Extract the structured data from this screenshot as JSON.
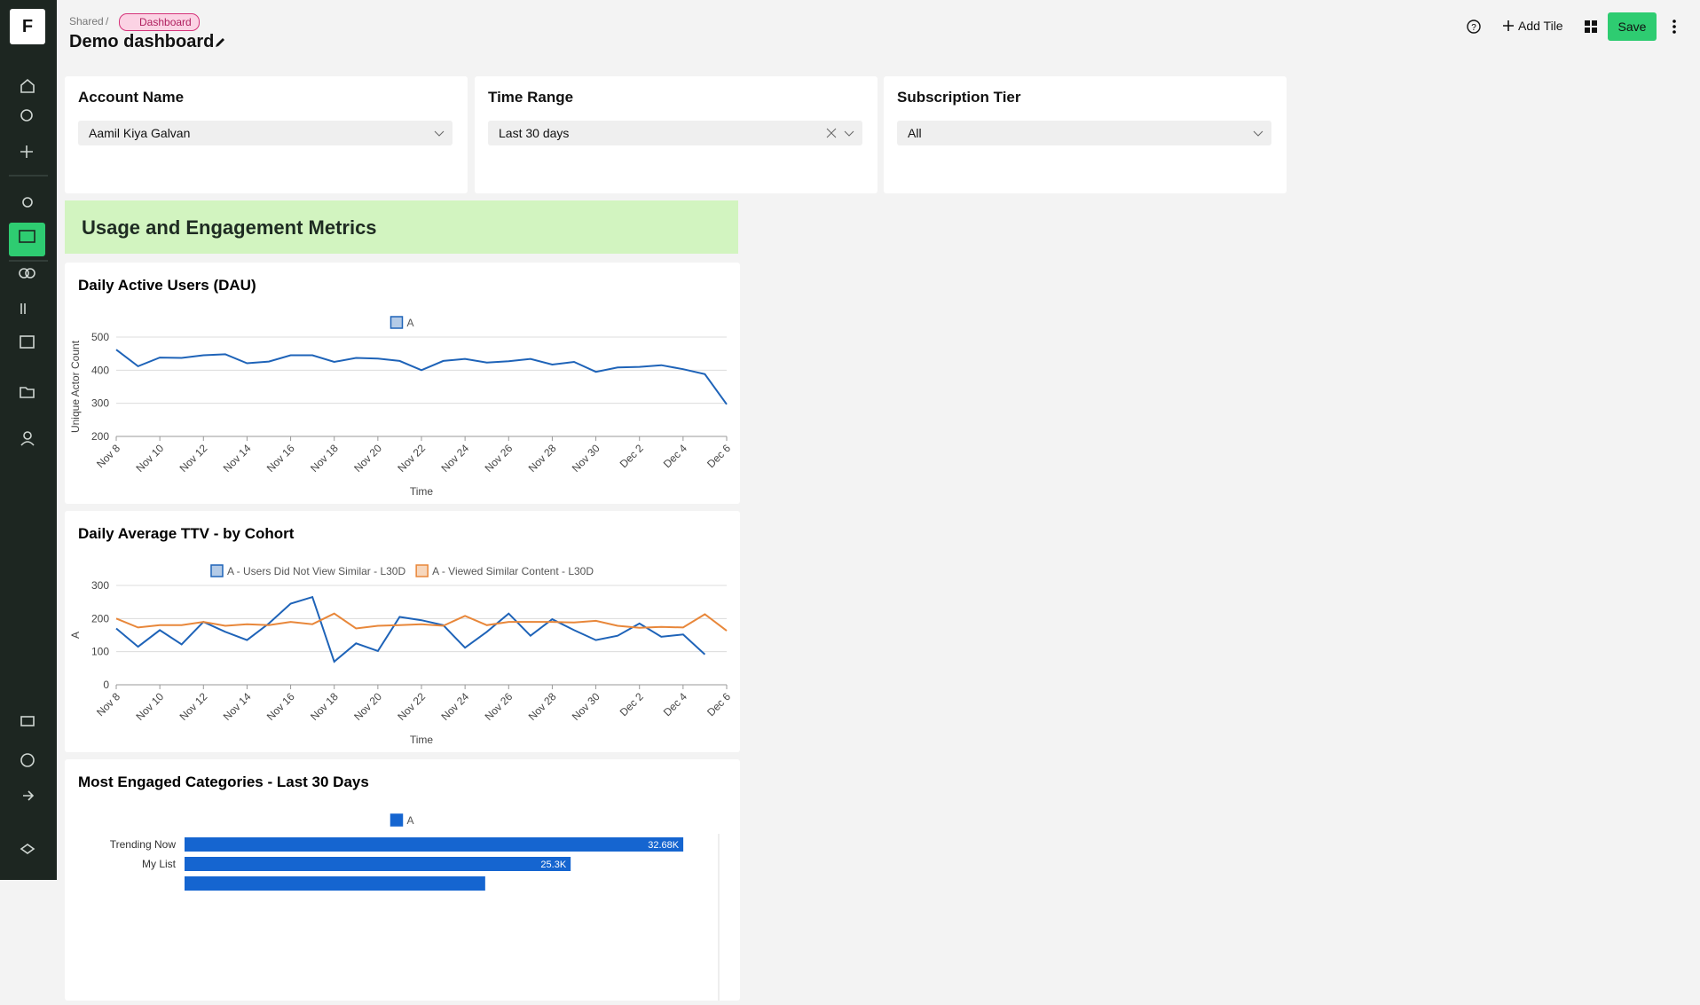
{
  "sidebar": {
    "logo": "F"
  },
  "header": {
    "breadcrumb": "Shared",
    "separator": "/",
    "tag": "Dashboard",
    "title": "Demo dashboard",
    "actions": {
      "add_tile": "Add Tile",
      "save": "Save"
    }
  },
  "filters": [
    {
      "label": "Account Name",
      "value": "Aamil Kiya Galvan"
    },
    {
      "label": "Time Range",
      "value": "Last 30 days"
    },
    {
      "label": "Subscription Tier",
      "value": "All"
    }
  ],
  "section": {
    "title": "Usage and Engagement Metrics"
  },
  "chart_data": [
    {
      "type": "line",
      "title": "Daily Active Users (DAU)",
      "x_label": "Time",
      "y_label": "Unique Actor Count",
      "categories": [
        "Nov 8",
        null,
        "Nov 10",
        null,
        "Nov 12",
        null,
        "Nov 14",
        null,
        "Nov 16",
        null,
        "Nov 18",
        null,
        "Nov 20",
        null,
        "Nov 22",
        null,
        "Nov 24",
        null,
        "Nov 26",
        null,
        "Nov 28",
        null,
        "Nov 30",
        null,
        "Dec 2",
        null,
        "Dec 4",
        null,
        "Dec 6"
      ],
      "series": [
        {
          "name": "A",
          "color": "#1e63b8",
          "values": [
            462,
            412,
            438,
            437,
            445,
            448,
            421,
            426,
            445,
            445,
            425,
            437,
            435,
            428,
            400,
            428,
            434,
            423,
            427,
            434,
            417,
            425,
            395,
            408,
            410,
            415,
            403,
            388,
            297
          ]
        }
      ],
      "ylim": [
        200,
        500
      ],
      "yticks": [
        200,
        300,
        400,
        500
      ]
    },
    {
      "type": "line",
      "title": "Daily Average TTV - by Cohort",
      "x_label": "Time",
      "y_label": "A",
      "categories": [
        "Nov 8",
        null,
        "Nov 10",
        null,
        "Nov 12",
        null,
        "Nov 14",
        null,
        "Nov 16",
        null,
        "Nov 18",
        null,
        "Nov 20",
        null,
        "Nov 22",
        null,
        "Nov 24",
        null,
        "Nov 26",
        null,
        "Nov 28",
        null,
        "Nov 30",
        null,
        "Dec 2",
        null,
        "Dec 4",
        null,
        "Dec 6"
      ],
      "series": [
        {
          "name": "A - Users Did Not View Similar - L30D",
          "color": "#1e63b8",
          "values": [
            170,
            115,
            165,
            122,
            190,
            160,
            135,
            185,
            245,
            265,
            70,
            125,
            102,
            205,
            195,
            180,
            112,
            160,
            215,
            148,
            198,
            165,
            135,
            148,
            185,
            145,
            152,
            92,
            null
          ]
        },
        {
          "name": "A - Viewed Similar Content - L30D",
          "color": "#e8873a",
          "values": [
            200,
            173,
            180,
            180,
            190,
            178,
            183,
            180,
            190,
            183,
            215,
            170,
            178,
            180,
            183,
            178,
            208,
            180,
            190,
            190,
            190,
            188,
            193,
            178,
            172,
            175,
            173,
            213,
            163
          ]
        }
      ],
      "ylim": [
        0,
        300
      ],
      "yticks": [
        0,
        100,
        200,
        300
      ]
    },
    {
      "type": "bar",
      "orientation": "horizontal",
      "title": "Most Engaged Categories - Last 30 Days",
      "categories": [
        "Trending Now",
        "My List",
        null
      ],
      "series": [
        {
          "name": "A",
          "color": "#1565d0",
          "values": [
            32680,
            25300,
            19700
          ],
          "value_labels": [
            "32.68K",
            "25.3K",
            null
          ]
        }
      ],
      "xlim": [
        0,
        35000
      ]
    }
  ]
}
